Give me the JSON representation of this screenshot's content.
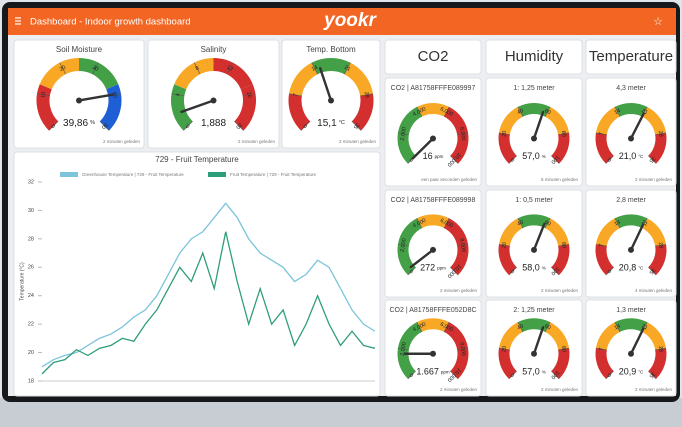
{
  "header": {
    "title": "Dashboard - Indoor growth dashboard",
    "logo": "yookr"
  },
  "left_gauges": [
    {
      "title": "Soil Moisture",
      "value": 39.86,
      "label": "39,86",
      "unit": "%",
      "min": 0,
      "max": 50,
      "ticks": [
        0,
        10,
        20,
        30,
        40,
        50
      ],
      "colors": [
        "#d32f2f",
        "#f9a825",
        "#43a047",
        "#1e5fd6"
      ],
      "footer": "2 minuten geleden"
    },
    {
      "title": "Salinity",
      "value": 1.888,
      "label": "1,888",
      "unit": "",
      "min": 0,
      "max": 20,
      "ticks": [
        0,
        4,
        8,
        12,
        16,
        20
      ],
      "colors": [
        "#43a047",
        "#f9a825",
        "#d32f2f",
        "#d32f2f"
      ],
      "footer": "2 minuten geleden"
    },
    {
      "title": "Temp. Bottom",
      "value": 15.1,
      "label": "15,1",
      "unit": "°C",
      "min": 0,
      "max": 35,
      "ticks": [
        0,
        7,
        14,
        21,
        28,
        35
      ],
      "colors": [
        "#d32f2f",
        "#f9a825",
        "#43a047",
        "#f9a825",
        "#d32f2f"
      ],
      "footer": "2 minuten geleden"
    }
  ],
  "chart_data": {
    "type": "line",
    "title": "729 - Fruit Temperature",
    "y_label": "Temperature (°C)",
    "categories": [
      null,
      null,
      null,
      null,
      null,
      null,
      null,
      null,
      null,
      null,
      null,
      null,
      null,
      null,
      null,
      null,
      null,
      null,
      null,
      null,
      null,
      null,
      null,
      null,
      null,
      null,
      null,
      null,
      null,
      null
    ],
    "series": [
      {
        "name": "Greenhouse Temperature | 729 - Fruit Temperature",
        "color": "#7cc4dc",
        "values": [
          19.0,
          19.5,
          19.8,
          20.0,
          20.5,
          21.0,
          21.3,
          21.8,
          22.5,
          23.0,
          24.0,
          25.5,
          27.0,
          28.0,
          28.5,
          29.5,
          30.5,
          29.5,
          28.0,
          27.0,
          26.5,
          26.0,
          25.0,
          25.5,
          26.5,
          26.0,
          24.5,
          23.0,
          22.0,
          21.5
        ]
      },
      {
        "name": "Fruit Temperature | 729 - Fruit Temperature",
        "color": "#2e9e7a",
        "values": [
          18.5,
          19.3,
          19.5,
          20.2,
          19.8,
          20.3,
          20.5,
          21.0,
          20.8,
          22.0,
          23.0,
          24.5,
          26.0,
          25.0,
          27.0,
          24.5,
          28.5,
          25.0,
          22.0,
          24.5,
          22.0,
          23.0,
          20.5,
          22.0,
          24.0,
          22.0,
          20.5,
          21.5,
          20.5,
          20.3
        ]
      }
    ],
    "ylim": [
      18,
      32
    ],
    "yticks": [
      18,
      20,
      22,
      24,
      26,
      28,
      30,
      32
    ],
    "grid": false
  },
  "columns": [
    "CO2",
    "Humidity",
    "Temperature"
  ],
  "grid_gauges": [
    [
      {
        "title": "CO2 | A81758FFFE089997",
        "value": 16,
        "label": "16",
        "unit": "ppm",
        "min": 0,
        "max": 10000,
        "ticks": [
          0,
          {
            "value": 2000,
            "label": "2,000"
          },
          {
            "value": 4000,
            "label": "4,000"
          },
          {
            "value": 6000,
            "label": "6,000"
          },
          {
            "value": 8000,
            "label": "8,000"
          },
          {
            "value": 10000,
            "label": "10,000"
          }
        ],
        "colors": [
          "#43a047",
          "#43a047",
          "#f9a825",
          "#d32f2f",
          "#d32f2f"
        ],
        "footer": "een paar seconden geleden"
      },
      {
        "title": "1: 1,25 meter",
        "value": 57.0,
        "label": "57,0",
        "unit": "%",
        "min": 0,
        "max": 100,
        "ticks": [
          0,
          20,
          40,
          60,
          80,
          100
        ],
        "colors": [
          "#d32f2f",
          "#f9a825",
          "#43a047",
          "#f9a825",
          "#d32f2f"
        ],
        "footer": "8 minuten geleden"
      },
      {
        "title": "4,3 meter",
        "value": 21.0,
        "label": "21,0",
        "unit": "°C",
        "min": 0,
        "max": 35,
        "ticks": [
          0,
          7,
          14,
          21,
          28,
          35
        ],
        "colors": [
          "#d32f2f",
          "#f9a825",
          "#43a047",
          "#f9a825",
          "#d32f2f"
        ],
        "footer": "2 minuten geleden"
      }
    ],
    [
      {
        "title": "CO2 | A81758FFFE089998",
        "value": 272,
        "label": "272",
        "unit": "ppm",
        "min": 0,
        "max": 10000,
        "ticks": [
          0,
          {
            "value": 2000,
            "label": "2,000"
          },
          {
            "value": 4000,
            "label": "4,000"
          },
          {
            "value": 6000,
            "label": "6,000"
          },
          {
            "value": 8000,
            "label": "8,000"
          },
          {
            "value": 10000,
            "label": "10,000"
          }
        ],
        "colors": [
          "#43a047",
          "#43a047",
          "#f9a825",
          "#d32f2f",
          "#d32f2f"
        ],
        "footer": "2 minuten geleden"
      },
      {
        "title": "1: 0,5 meter",
        "value": 58.0,
        "label": "58,0",
        "unit": "%",
        "min": 0,
        "max": 100,
        "ticks": [
          0,
          20,
          40,
          60,
          80,
          100
        ],
        "colors": [
          "#d32f2f",
          "#f9a825",
          "#43a047",
          "#f9a825",
          "#d32f2f"
        ],
        "footer": "2 minuten geleden"
      },
      {
        "title": "2,8 meter",
        "value": 20.8,
        "label": "20,8",
        "unit": "°C",
        "min": 0,
        "max": 35,
        "ticks": [
          0,
          7,
          14,
          21,
          28,
          35
        ],
        "colors": [
          "#d32f2f",
          "#f9a825",
          "#43a047",
          "#f9a825",
          "#d32f2f"
        ],
        "footer": "4 minuten geleden"
      }
    ],
    [
      {
        "title": "CO2 | A81758FFFE052D8C",
        "value": 1667,
        "label": "1.667",
        "unit": "ppm",
        "min": 0,
        "max": 10000,
        "ticks": [
          0,
          {
            "value": 2000,
            "label": "2,000"
          },
          {
            "value": 4000,
            "label": "4,000"
          },
          {
            "value": 6000,
            "label": "6,000"
          },
          {
            "value": 8000,
            "label": "8,000"
          },
          {
            "value": 10000,
            "label": "10,000"
          }
        ],
        "colors": [
          "#43a047",
          "#43a047",
          "#f9a825",
          "#d32f2f",
          "#d32f2f"
        ],
        "footer": "2 minuten geleden"
      },
      {
        "title": "2: 1,25 meter",
        "value": 57.0,
        "label": "57,0",
        "unit": "%",
        "min": 0,
        "max": 100,
        "ticks": [
          0,
          20,
          40,
          60,
          80,
          100
        ],
        "colors": [
          "#d32f2f",
          "#f9a825",
          "#43a047",
          "#f9a825",
          "#d32f2f"
        ],
        "footer": "2 minuten geleden"
      },
      {
        "title": "1,3 meter",
        "value": 20.9,
        "label": "20,9",
        "unit": "°C",
        "min": 0,
        "max": 35,
        "ticks": [
          0,
          7,
          14,
          21,
          28,
          35
        ],
        "colors": [
          "#d32f2f",
          "#f9a825",
          "#43a047",
          "#f9a825",
          "#d32f2f"
        ],
        "footer": "2 minuten geleden"
      }
    ]
  ]
}
